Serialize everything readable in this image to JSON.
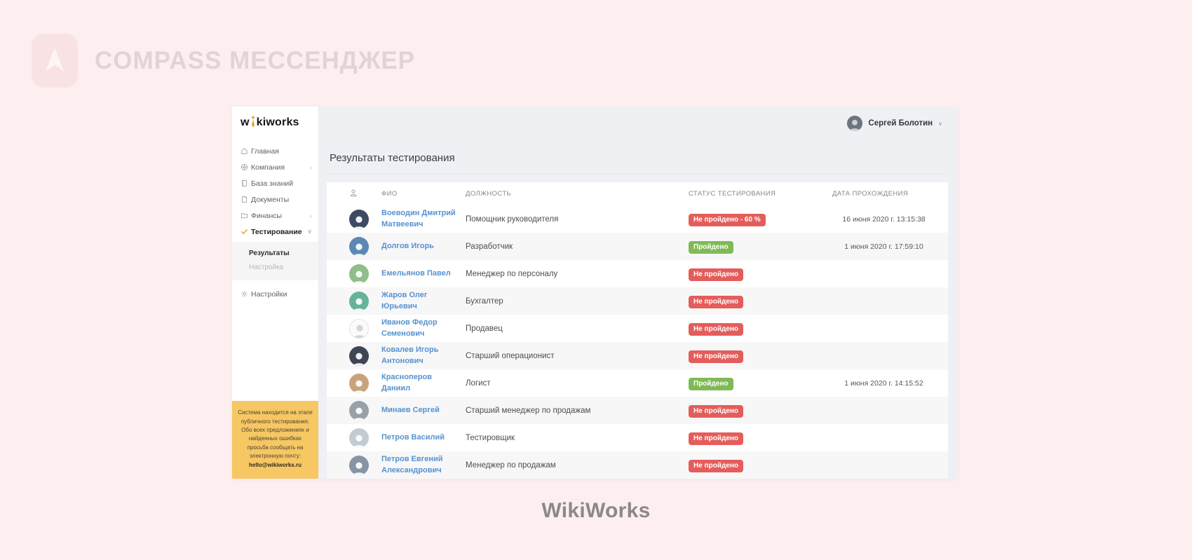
{
  "page": {
    "brand_name": "COMPASS МЕССЕНДЖЕР",
    "caption": "WikiWorks"
  },
  "colors": {
    "page_background": "#fdeef0",
    "notice_yellow": "#f6c763",
    "tie_gold": "#e9a43b",
    "link_blue": "#5692d0",
    "badge_red": "#e45d5b",
    "badge_green": "#80ba56",
    "main_background": "#eef0f4"
  },
  "app": {
    "logo": {
      "prefix": "w",
      "suffix": "kiworks",
      "tie_icon": "tie-icon"
    },
    "user": {
      "name": "Сергей Болотин",
      "caret": "∨"
    },
    "sidebar": {
      "items": [
        {
          "label": "Главная",
          "icon": "home-icon",
          "chevron": ""
        },
        {
          "label": "Компания",
          "icon": "company-icon",
          "chevron": "›"
        },
        {
          "label": "База знаний",
          "icon": "book-icon",
          "chevron": ""
        },
        {
          "label": "Документы",
          "icon": "docs-icon",
          "chevron": ""
        },
        {
          "label": "Финансы",
          "icon": "folder-icon",
          "chevron": "›"
        },
        {
          "label": "Тестирование",
          "icon": "test-icon",
          "chevron": "∨",
          "active": true
        }
      ],
      "submenu": [
        {
          "label": "Результаты",
          "active": true
        },
        {
          "label": "Настройка"
        }
      ],
      "settings": {
        "label": "Настройки",
        "icon": "gear-icon",
        "chevron": ""
      },
      "notice": {
        "text": "Система находится на этапе публичного тестирования. Обо всех предложениях и найденных ошибках просьба сообщать на электронную почту: ",
        "email": "hello@wikiworks.ru"
      }
    },
    "main": {
      "title": "Результаты тестирования",
      "table": {
        "headers": {
          "fio": "ФИО",
          "position": "ДОЛЖНОСТЬ",
          "status": "СТАТУС ТЕСТИРОВАНИЯ",
          "date": "ДАТА ПРОХОЖДЕНИЯ"
        },
        "rows": [
          {
            "name": "Воеводин Дмитрий Матвеевич",
            "position": "Помощник руководителя",
            "status": "Не пройдено - 60 %",
            "status_type": "fail",
            "date": "16 июня 2020 г. 13:15:38",
            "avatar_color": "#3d4a63",
            "avatar_style": ""
          },
          {
            "name": "Долгов Игорь",
            "position": "Разработчик",
            "status": "Пройдено",
            "status_type": "pass",
            "date": "1 июня 2020 г. 17:59:10",
            "avatar_color": "#5d88b5",
            "avatar_style": ""
          },
          {
            "name": "Емельянов Павел",
            "position": "Менеджер по персоналу",
            "status": "Не пройдено",
            "status_type": "fail",
            "date": "",
            "avatar_color": "#8fbe89",
            "avatar_style": ""
          },
          {
            "name": "Жаров Олег Юрьевич",
            "position": "Бухгалтер",
            "status": "Не пройдено",
            "status_type": "fail",
            "date": "",
            "avatar_color": "#66b39b",
            "avatar_style": ""
          },
          {
            "name": "Иванов Федор Семенович",
            "position": "Продавец",
            "status": "Не пройдено",
            "status_type": "fail",
            "date": "",
            "avatar_color": "",
            "avatar_style": "placeholder"
          },
          {
            "name": "Ковалев Игорь Антонович",
            "position": "Старший операционист",
            "status": "Не пройдено",
            "status_type": "fail",
            "date": "",
            "avatar_color": "#3e4654",
            "avatar_style": ""
          },
          {
            "name": "Красноперов Даниил",
            "position": "Логист",
            "status": "Пройдено",
            "status_type": "pass",
            "date": "1 июня 2020 г. 14:15:52",
            "avatar_color": "#c8a47c",
            "avatar_style": ""
          },
          {
            "name": "Минаев Сергей",
            "position": "Старший менеджер по продажам",
            "status": "Не пройдено",
            "status_type": "fail",
            "date": "",
            "avatar_color": "#98a0a8",
            "avatar_style": ""
          },
          {
            "name": "Петров Василий",
            "position": "Тестировщик",
            "status": "Не пройдено",
            "status_type": "fail",
            "date": "",
            "avatar_color": "#c3ccd2",
            "avatar_style": ""
          },
          {
            "name": "Петров Евгений Александрович",
            "position": "Менеджер по продажам",
            "status": "Не пройдено",
            "status_type": "fail",
            "date": "",
            "avatar_color": "#8794a6",
            "avatar_style": ""
          }
        ]
      }
    }
  }
}
